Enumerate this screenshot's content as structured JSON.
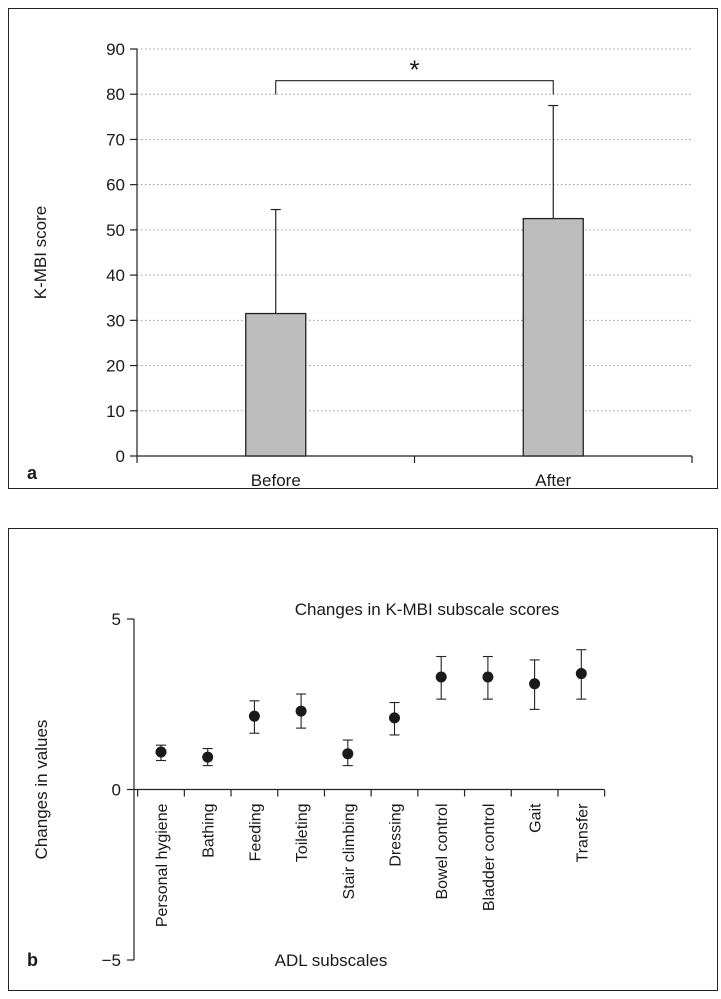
{
  "chart_data": [
    {
      "type": "bar",
      "panel_label": "a",
      "title": "",
      "xlabel": "",
      "ylabel": "K-MBI score",
      "ylim": [
        0,
        90
      ],
      "yticks": [
        0,
        10,
        20,
        30,
        40,
        50,
        60,
        70,
        80,
        90
      ],
      "categories": [
        "Before",
        "After"
      ],
      "values": [
        31.5,
        52.5
      ],
      "errors": [
        23.0,
        25.0
      ],
      "bar_color": "#bdbdbd",
      "grid": "horizontal dotted",
      "significance": {
        "between": [
          0,
          1
        ],
        "at": 83,
        "label": "*"
      }
    },
    {
      "type": "scatter",
      "panel_label": "b",
      "title": "Changes in K-MBI subscale scores",
      "xlabel": "ADL subscales",
      "ylabel": "Changes in values",
      "ylim": [
        -5,
        5
      ],
      "yticks": [
        -5,
        0,
        5
      ],
      "ytick_labels": [
        "−5",
        "0",
        "5"
      ],
      "categories": [
        "Personal hygiene",
        "Bathing",
        "Feeding",
        "Toileting",
        "Stair climbing",
        "Dressing",
        "Bowel control",
        "Bladder control",
        "Gait",
        "Transfer"
      ],
      "values": [
        1.1,
        0.95,
        2.15,
        2.3,
        1.05,
        2.1,
        3.3,
        3.3,
        3.1,
        3.4
      ],
      "lower": [
        0.85,
        0.7,
        1.65,
        1.8,
        0.7,
        1.6,
        2.65,
        2.65,
        2.35,
        2.65
      ],
      "upper": [
        1.3,
        1.2,
        2.6,
        2.8,
        1.45,
        2.55,
        3.9,
        3.9,
        3.8,
        4.1
      ],
      "marker_color": "#1a1a1a"
    }
  ]
}
